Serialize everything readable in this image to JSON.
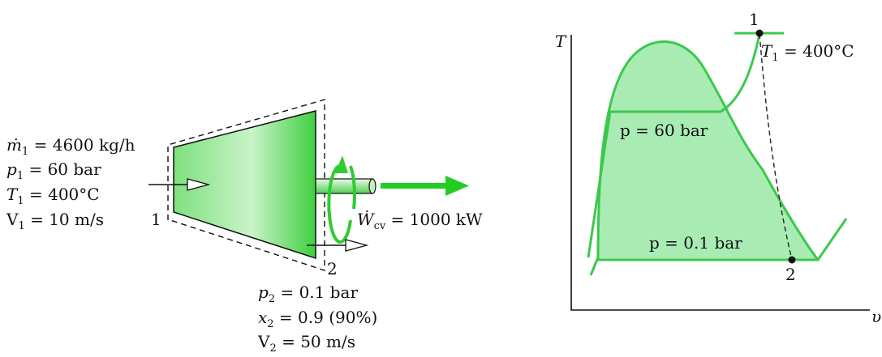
{
  "turbine": {
    "inlet": {
      "mdot": "ṁ",
      "mdot_sub": "1",
      "mdot_value": " = 4600 kg/h",
      "p": "p",
      "p_sub": "1",
      "p_value": " = 60 bar",
      "T": "T",
      "T_sub": "1",
      "T_value": " = 400°C",
      "V": "V",
      "V_sub": "1",
      "V_value": " = 10 m/s",
      "state_label": "1"
    },
    "work": {
      "W": "Ẇ",
      "W_sub": "cv",
      "W_value": " = 1000 kW"
    },
    "exit": {
      "state_label": "2",
      "p": "p",
      "p_sub": "2",
      "p_value": " = 0.1 bar",
      "x": "x",
      "x_sub": "2",
      "x_value": " = 0.9 (90%)",
      "V": "V",
      "V_sub": "2",
      "V_value": " = 50 m/s"
    },
    "colors": {
      "fill": "#33cc33",
      "fill_light": "#b8f0b8",
      "stroke": "#111111"
    }
  },
  "ts_diagram": {
    "y_axis": "T",
    "x_axis": "υ",
    "point1_label": "1",
    "point2_label": "2",
    "T1_label": "T",
    "T1_sub": "1",
    "T1_value": " = 400°C",
    "high_pressure": "p = 60 bar",
    "low_pressure": "p = 0.1 bar",
    "colors": {
      "dome_fill": "#a8ecb4",
      "curve": "#3cc84c",
      "dashed": "#222222"
    }
  }
}
